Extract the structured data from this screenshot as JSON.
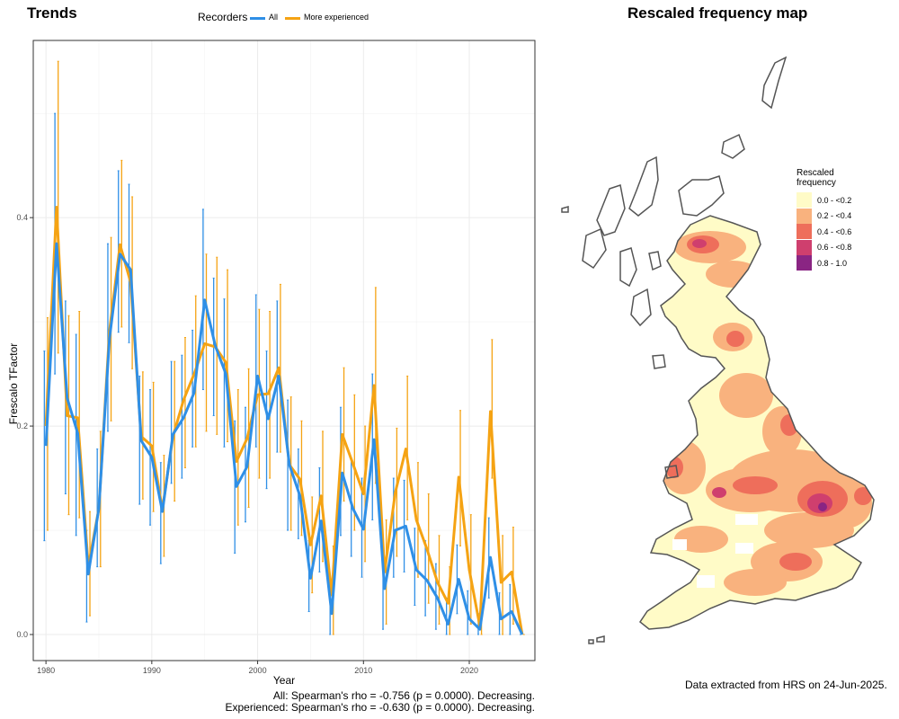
{
  "trends_panel": {
    "title": "Trends",
    "legend_title": "Recorders",
    "footer_line1": "All: Spearman's rho = -0.756 (p = 0.0000). Decreasing.",
    "footer_line2": "Experienced: Spearman's rho = -0.630 (p = 0.0000). Decreasing."
  },
  "map_panel": {
    "title": "Rescaled frequency map",
    "legend_title_line1": "Rescaled",
    "legend_title_line2": "frequency",
    "legend_items": [
      {
        "label": "0.0 - <0.2",
        "color": "#fffbc7"
      },
      {
        "label": "0.2 - <0.4",
        "color": "#f9b27e"
      },
      {
        "label": "0.4 - <0.6",
        "color": "#ee6e5b"
      },
      {
        "label": "0.6 - <0.8",
        "color": "#cf3f6e"
      },
      {
        "label": "0.8 - 1.0",
        "color": "#8a2583"
      }
    ],
    "footer": "Data extracted from HRS on 24-Jun-2025."
  },
  "chart_data": {
    "type": "line",
    "title": "Trends",
    "xlabel": "Year",
    "ylabel": "Frescalo TFactor",
    "xlim": [
      1978.8,
      2026.2
    ],
    "ylim": [
      -0.025,
      0.57
    ],
    "xticks": [
      1980,
      1990,
      2000,
      2010,
      2020
    ],
    "yticks": [
      0.0,
      0.2,
      0.4
    ],
    "ytick_labels": [
      "0.0",
      "0.2",
      "0.4"
    ],
    "grid": true,
    "legend_position": "top",
    "x": [
      1980,
      1981,
      1982,
      1983,
      1984,
      1985,
      1986,
      1987,
      1988,
      1989,
      1990,
      1991,
      1992,
      1993,
      1994,
      1995,
      1996,
      1997,
      1998,
      1999,
      2000,
      2001,
      2002,
      2003,
      2004,
      2005,
      2006,
      2007,
      2008,
      2009,
      2010,
      2011,
      2012,
      2013,
      2014,
      2015,
      2016,
      2017,
      2018,
      2019,
      2020,
      2021,
      2022,
      2023,
      2024,
      2025
    ],
    "series": [
      {
        "name": "All",
        "color": "#2f8fe6",
        "values": [
          0.181,
          0.375,
          0.227,
          0.193,
          0.058,
          0.121,
          0.284,
          0.365,
          0.35,
          0.186,
          0.17,
          0.118,
          0.192,
          0.208,
          0.232,
          0.321,
          0.277,
          0.25,
          0.142,
          0.161,
          0.248,
          0.207,
          0.248,
          0.163,
          0.133,
          0.054,
          0.109,
          0.02,
          0.155,
          0.121,
          0.101,
          0.187,
          0.044,
          0.1,
          0.104,
          0.062,
          0.052,
          0.035,
          0.01,
          0.053,
          0.015,
          0.005,
          0.074,
          0.015,
          0.022,
          0.0
        ],
        "lower": [
          0.09,
          0.25,
          0.135,
          0.095,
          0.012,
          0.065,
          0.195,
          0.29,
          0.28,
          0.125,
          0.105,
          0.068,
          0.145,
          0.15,
          0.18,
          0.235,
          0.21,
          0.18,
          0.078,
          0.108,
          0.18,
          0.14,
          0.175,
          0.1,
          0.092,
          0.022,
          0.06,
          0.0,
          0.095,
          0.075,
          0.055,
          0.11,
          0.005,
          0.055,
          0.06,
          0.028,
          0.018,
          0.005,
          0.0,
          0.02,
          0.0,
          0.0,
          0.035,
          0.0,
          0.0,
          0.0
        ],
        "upper": [
          0.272,
          0.5,
          0.32,
          0.288,
          0.1,
          0.178,
          0.375,
          0.445,
          0.432,
          0.248,
          0.235,
          0.165,
          0.262,
          0.268,
          0.292,
          0.408,
          0.342,
          0.322,
          0.205,
          0.218,
          0.326,
          0.272,
          0.32,
          0.225,
          0.178,
          0.09,
          0.16,
          0.045,
          0.218,
          0.168,
          0.15,
          0.25,
          0.085,
          0.15,
          0.148,
          0.102,
          0.09,
          0.068,
          0.035,
          0.086,
          0.042,
          0.02,
          0.112,
          0.04,
          0.048,
          0.0
        ]
      },
      {
        "name": "More experienced",
        "color": "#f5a313",
        "values": [
          0.2,
          0.41,
          0.21,
          0.208,
          0.065,
          0.121,
          0.291,
          0.374,
          0.338,
          0.19,
          0.181,
          0.12,
          0.19,
          0.225,
          0.25,
          0.279,
          0.276,
          0.261,
          0.166,
          0.188,
          0.23,
          0.231,
          0.256,
          0.163,
          0.149,
          0.086,
          0.133,
          0.038,
          0.192,
          0.164,
          0.135,
          0.239,
          0.06,
          0.136,
          0.178,
          0.11,
          0.082,
          0.05,
          0.03,
          0.151,
          0.062,
          0.008,
          0.214,
          0.05,
          0.06,
          0.0
        ],
        "lower": [
          0.1,
          0.27,
          0.115,
          0.112,
          0.018,
          0.065,
          0.205,
          0.295,
          0.255,
          0.13,
          0.118,
          0.075,
          0.128,
          0.16,
          0.18,
          0.195,
          0.192,
          0.185,
          0.105,
          0.122,
          0.15,
          0.15,
          0.175,
          0.1,
          0.095,
          0.04,
          0.07,
          0.0,
          0.128,
          0.1,
          0.07,
          0.145,
          0.01,
          0.075,
          0.11,
          0.055,
          0.03,
          0.01,
          0.0,
          0.085,
          0.01,
          0.0,
          0.15,
          0.0,
          0.01,
          0.0
        ],
        "upper": [
          0.304,
          0.55,
          0.306,
          0.31,
          0.118,
          0.195,
          0.381,
          0.455,
          0.42,
          0.252,
          0.242,
          0.172,
          0.262,
          0.285,
          0.325,
          0.365,
          0.362,
          0.35,
          0.235,
          0.255,
          0.312,
          0.31,
          0.336,
          0.228,
          0.205,
          0.132,
          0.195,
          0.085,
          0.256,
          0.23,
          0.2,
          0.333,
          0.11,
          0.198,
          0.248,
          0.165,
          0.135,
          0.095,
          0.065,
          0.215,
          0.115,
          0.04,
          0.283,
          0.095,
          0.103,
          0.0
        ]
      }
    ]
  }
}
